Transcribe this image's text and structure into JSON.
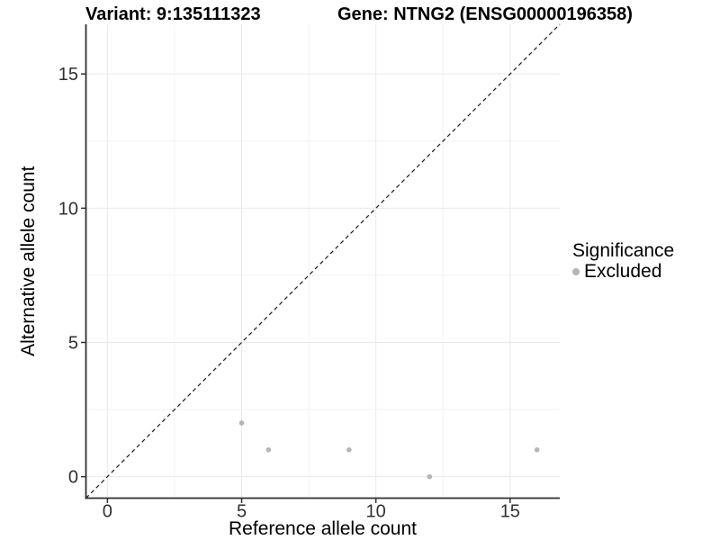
{
  "chart_data": {
    "type": "scatter",
    "title_left": "Variant: 9:135111323",
    "title_right": "Gene: NTNG2 (ENSG00000196358)",
    "xlabel": "Reference allele count",
    "ylabel": "Alternative allele count",
    "xlim": [
      -0.8,
      16.85
    ],
    "ylim": [
      -0.8,
      16.85
    ],
    "xticks": [
      0,
      5,
      10,
      15
    ],
    "yticks": [
      0,
      5,
      10,
      15
    ],
    "xminor": [
      2.5,
      7.5,
      12.5
    ],
    "yminor": [
      2.5,
      7.5,
      12.5
    ],
    "grid": "major+minor",
    "reference_line": {
      "type": "identity y=x",
      "style": "dashed",
      "color": "#1a1a1a"
    },
    "series": [
      {
        "name": "Excluded",
        "color": "#b5b5b5",
        "points": [
          [
            5,
            2
          ],
          [
            6,
            1
          ],
          [
            9,
            1
          ],
          [
            12,
            0
          ],
          [
            16,
            1
          ]
        ]
      }
    ],
    "legend": {
      "title": "Significance",
      "position": "right",
      "items": [
        {
          "label": "Excluded",
          "color": "#b5b5b5"
        }
      ]
    }
  },
  "colors": {
    "background": "#ffffff",
    "grid_major": "#e9e9e9",
    "grid_minor": "#f3f3f3",
    "axis_line": "#2f2f2f",
    "tick_mark": "#333333",
    "tick_label": "#303030",
    "point": "#b5b5b5",
    "dashed_line": "#1a1a1a"
  }
}
